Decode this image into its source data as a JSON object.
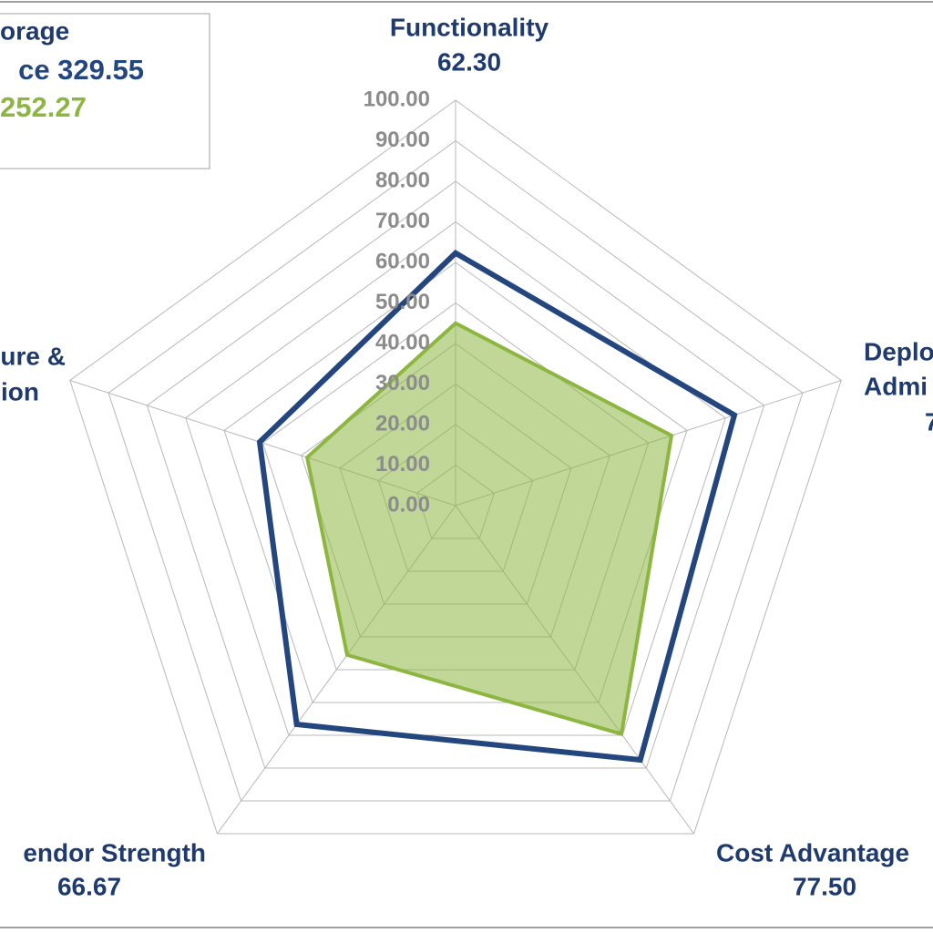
{
  "chart_data": {
    "type": "radar",
    "legend_title": "orage",
    "categories": [
      [
        "Functionality"
      ],
      [
        "Deplo",
        "Admi",
        "7"
      ],
      [
        "Cost Advantage"
      ],
      [
        "endor Strength"
      ],
      [
        "ure &",
        "ion"
      ]
    ],
    "series": [
      {
        "name": "ce 329.55",
        "color": "#24467e",
        "values": [
          62.3,
          72.3,
          77.5,
          66.67,
          50.8
        ],
        "value_labels": [
          "62.30",
          null,
          "77.50",
          "66.67",
          null
        ],
        "fill": false
      },
      {
        "name": "252.27",
        "color": "#8db641",
        "values": [
          45,
          56,
          69.6,
          45.5,
          38.5
        ],
        "fill": true
      }
    ],
    "ylim": [
      0,
      100
    ],
    "yticks": [
      {
        "value": 0,
        "label": "0.00"
      },
      {
        "value": 10,
        "label": "10.00"
      },
      {
        "value": 20,
        "label": "20.00"
      },
      {
        "value": 30,
        "label": "30.00"
      },
      {
        "value": 40,
        "label": "40.00"
      },
      {
        "value": 50,
        "label": "50.00"
      },
      {
        "value": 60,
        "label": "60.00"
      },
      {
        "value": 70,
        "label": "70.00"
      },
      {
        "value": 80,
        "label": "80.00"
      },
      {
        "value": 90,
        "label": "90.00"
      },
      {
        "value": 100,
        "label": "100.00"
      }
    ],
    "grid": true
  }
}
